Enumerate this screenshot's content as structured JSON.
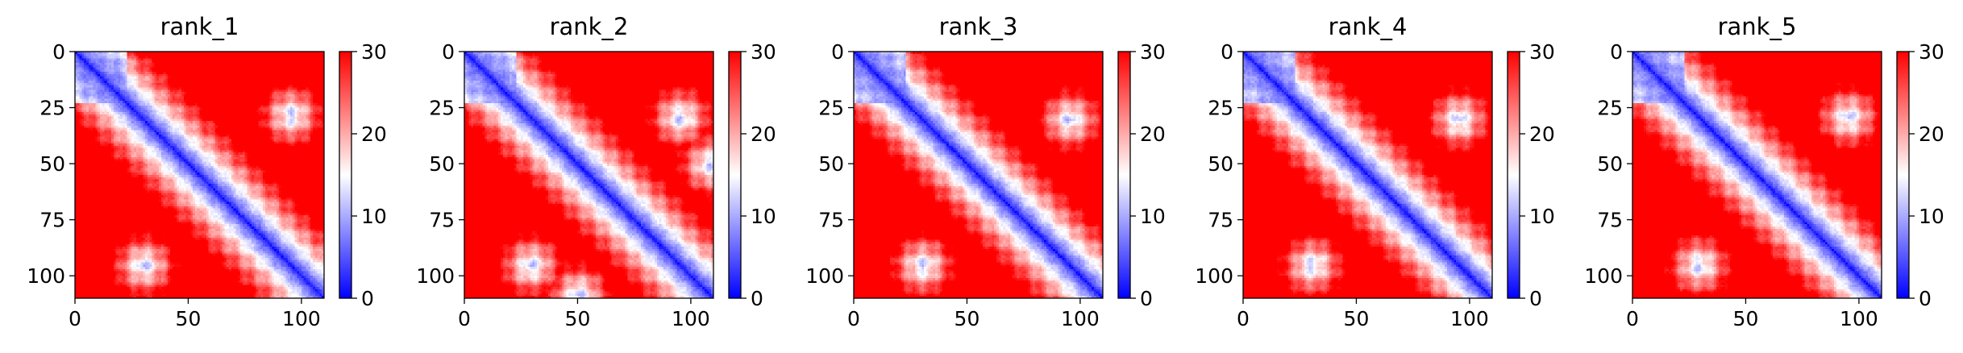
{
  "chart_data": [
    {
      "type": "heatmap",
      "title": "rank_1",
      "x": {
        "ticks": [
          0,
          50,
          100
        ],
        "range": [
          0,
          110
        ]
      },
      "y": {
        "ticks": [
          0,
          25,
          50,
          75,
          100
        ],
        "range": [
          0,
          110
        ],
        "inverted": true
      },
      "colorbar": {
        "ticks": [
          0,
          10,
          20,
          30
        ],
        "range": [
          0,
          30
        ],
        "colormap": "bwr"
      },
      "size": 110,
      "features": {
        "diagonal_value": 1,
        "low_block": {
          "start": 0,
          "end": 22
        },
        "spots": [
          [
            95,
            30
          ],
          [
            28,
            95
          ],
          [
            18,
            13
          ],
          [
            13,
            18
          ]
        ]
      }
    },
    {
      "type": "heatmap",
      "title": "rank_2",
      "x": {
        "ticks": [
          0,
          50,
          100
        ],
        "range": [
          0,
          110
        ]
      },
      "y": {
        "ticks": [
          0,
          25,
          50,
          75,
          100
        ],
        "range": [
          0,
          110
        ],
        "inverted": true
      },
      "colorbar": {
        "ticks": [
          0,
          10,
          20,
          30
        ],
        "range": [
          0,
          30
        ],
        "colormap": "bwr"
      },
      "size": 110,
      "features": {
        "diagonal_value": 1,
        "low_block": {
          "start": 0,
          "end": 22
        },
        "spots": [
          [
            95,
            29
          ],
          [
            29,
            95
          ],
          [
            108,
            50
          ],
          [
            50,
            108
          ]
        ]
      }
    },
    {
      "type": "heatmap",
      "title": "rank_3",
      "x": {
        "ticks": [
          0,
          50,
          100
        ],
        "range": [
          0,
          110
        ]
      },
      "y": {
        "ticks": [
          0,
          25,
          50,
          75,
          100
        ],
        "range": [
          0,
          110
        ],
        "inverted": true
      },
      "colorbar": {
        "ticks": [
          0,
          10,
          20,
          30
        ],
        "range": [
          0,
          30
        ],
        "colormap": "bwr"
      },
      "size": 110,
      "features": {
        "diagonal_value": 1,
        "low_block": {
          "start": 0,
          "end": 22
        },
        "spots": [
          [
            95,
            30
          ],
          [
            30,
            95
          ]
        ]
      }
    },
    {
      "type": "heatmap",
      "title": "rank_4",
      "x": {
        "ticks": [
          0,
          50,
          100
        ],
        "range": [
          0,
          110
        ]
      },
      "y": {
        "ticks": [
          0,
          25,
          50,
          75,
          100
        ],
        "range": [
          0,
          110
        ],
        "inverted": true
      },
      "colorbar": {
        "ticks": [
          0,
          10,
          20,
          30
        ],
        "range": [
          0,
          30
        ],
        "colormap": "bwr"
      },
      "size": 110,
      "features": {
        "diagonal_value": 1,
        "low_block": {
          "start": 0,
          "end": 22
        },
        "spots": [
          [
            95,
            30
          ],
          [
            30,
            95
          ]
        ]
      }
    },
    {
      "type": "heatmap",
      "title": "rank_5",
      "x": {
        "ticks": [
          0,
          50,
          100
        ],
        "range": [
          0,
          110
        ]
      },
      "y": {
        "ticks": [
          0,
          25,
          50,
          75,
          100
        ],
        "range": [
          0,
          110
        ],
        "inverted": true
      },
      "colorbar": {
        "ticks": [
          0,
          10,
          20,
          30
        ],
        "range": [
          0,
          30
        ],
        "colormap": "bwr"
      },
      "size": 110,
      "features": {
        "diagonal_value": 1,
        "low_block": {
          "start": 0,
          "end": 22
        },
        "spots": [
          [
            95,
            29
          ],
          [
            29,
            95
          ]
        ]
      }
    }
  ]
}
